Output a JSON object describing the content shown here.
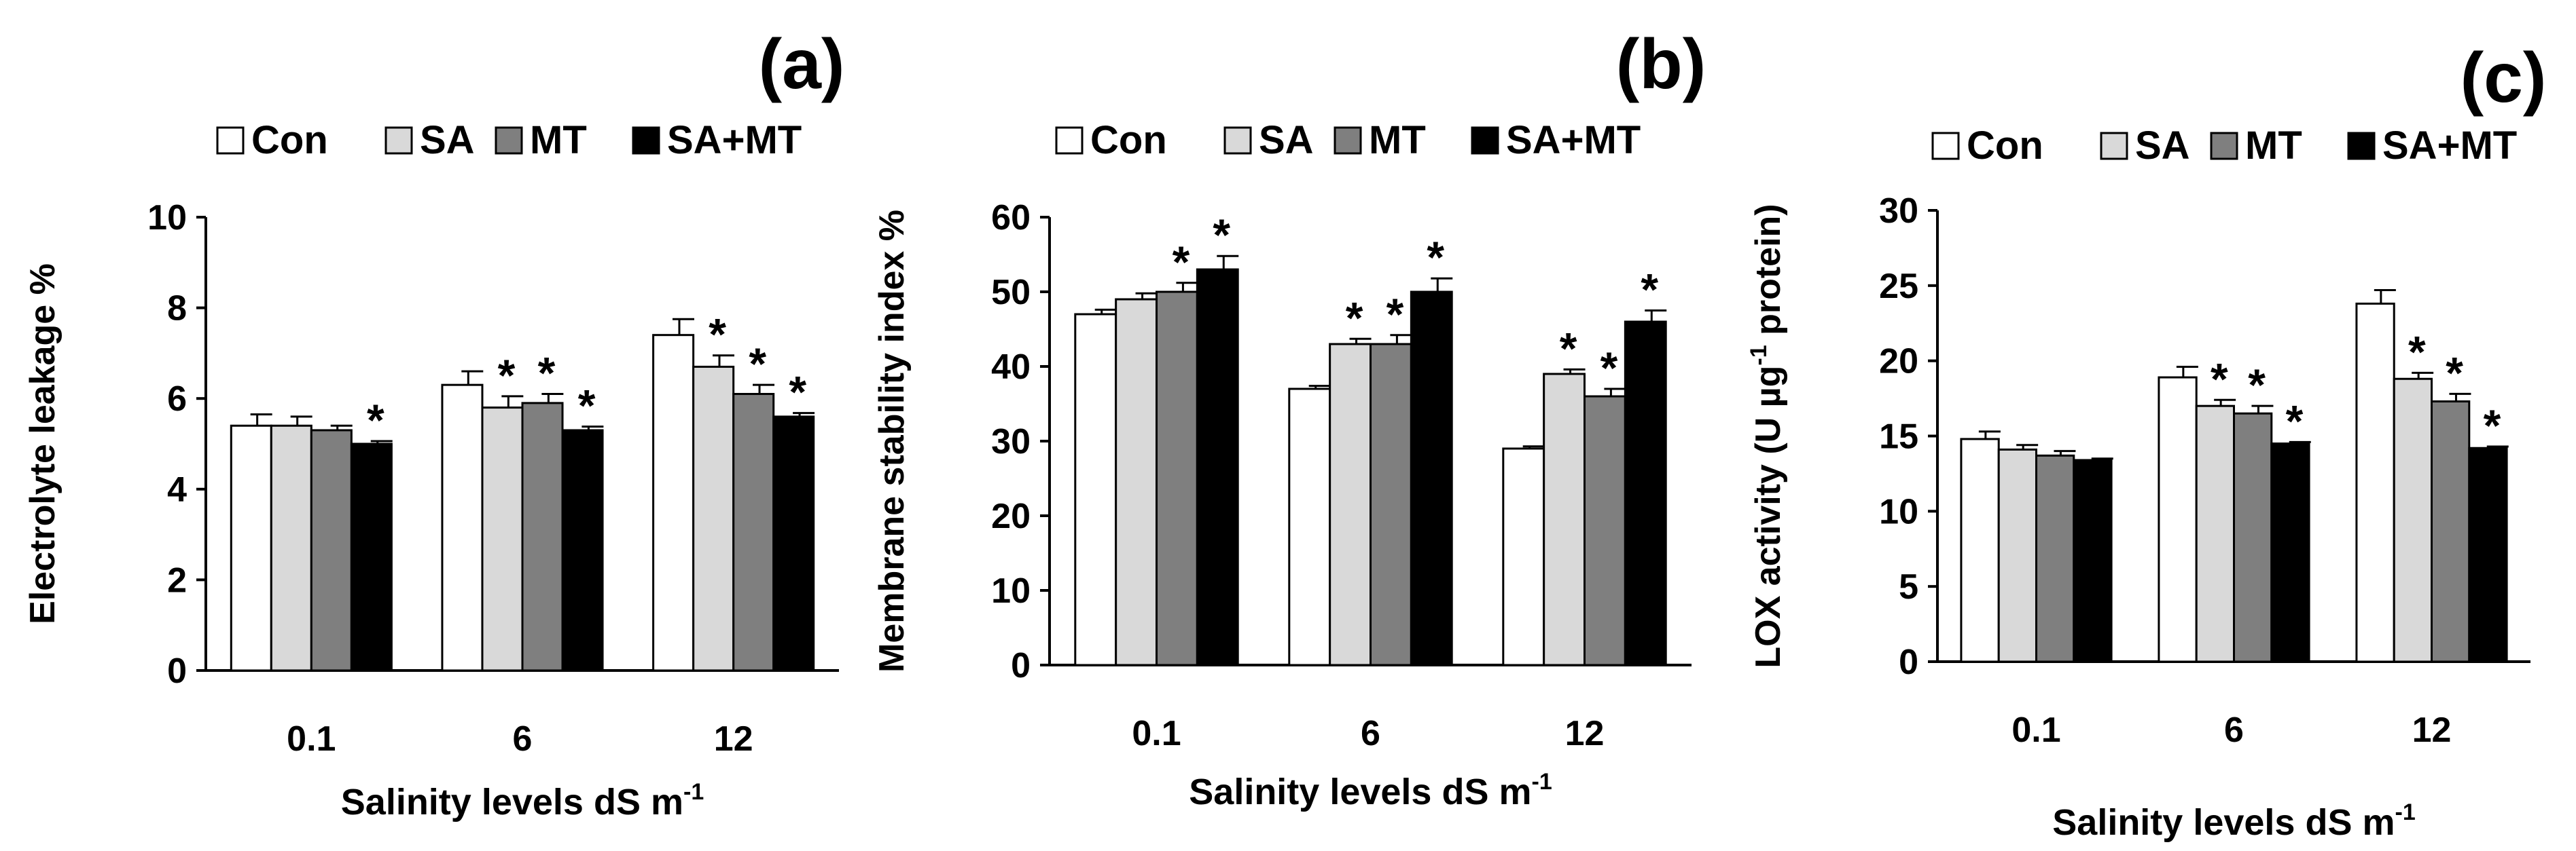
{
  "chart_data": [
    {
      "panel": "(a)",
      "type": "bar",
      "categories": [
        "0.1",
        "6",
        "12"
      ],
      "series": [
        {
          "name": "Con",
          "color": "#ffffff",
          "values": [
            5.4,
            6.3,
            7.4
          ],
          "errors": [
            0.25,
            0.3,
            0.35
          ],
          "significant": [
            false,
            false,
            false
          ]
        },
        {
          "name": "SA",
          "color": "#d9d9d9",
          "values": [
            5.4,
            5.8,
            6.7
          ],
          "errors": [
            0.2,
            0.25,
            0.25
          ],
          "significant": [
            false,
            true,
            true
          ]
        },
        {
          "name": "MT",
          "color": "#7f7f7f",
          "values": [
            5.3,
            5.9,
            6.1
          ],
          "errors": [
            0.1,
            0.2,
            0.2
          ],
          "significant": [
            false,
            true,
            true
          ]
        },
        {
          "name": "SA+MT",
          "color": "#000000",
          "values": [
            5.0,
            5.3,
            5.6
          ],
          "errors": [
            0.06,
            0.08,
            0.08
          ],
          "significant": [
            true,
            true,
            true
          ]
        }
      ],
      "significance_marker": "*",
      "ylabel": "Electrolyte leakage %",
      "xlabel": "Salinity levels dS m",
      "xlabel_sup": "-1",
      "ylim": [
        0,
        10
      ],
      "yticks": [
        "0",
        "2",
        "4",
        "6",
        "8",
        "10"
      ]
    },
    {
      "panel": "(b)",
      "type": "bar",
      "categories": [
        "0.1",
        "6",
        "12"
      ],
      "series": [
        {
          "name": "Con",
          "color": "#ffffff",
          "values": [
            47,
            37,
            29
          ],
          "errors": [
            0.6,
            0.4,
            0.3
          ],
          "significant": [
            false,
            false,
            false
          ]
        },
        {
          "name": "SA",
          "color": "#d9d9d9",
          "values": [
            49,
            43,
            39
          ],
          "errors": [
            0.8,
            0.7,
            0.6
          ],
          "significant": [
            false,
            true,
            true
          ]
        },
        {
          "name": "MT",
          "color": "#7f7f7f",
          "values": [
            50,
            43,
            36
          ],
          "errors": [
            1.2,
            1.2,
            1.0
          ],
          "significant": [
            true,
            true,
            true
          ]
        },
        {
          "name": "SA+MT",
          "color": "#000000",
          "values": [
            53,
            50,
            46
          ],
          "errors": [
            1.8,
            1.8,
            1.5
          ],
          "significant": [
            true,
            true,
            true
          ]
        }
      ],
      "significance_marker": "*",
      "ylabel": "Membrane stability index %",
      "xlabel": "Salinity levels dS m",
      "xlabel_sup": "-1",
      "ylim": [
        0,
        60
      ],
      "yticks": [
        "0",
        "10",
        "20",
        "30",
        "40",
        "50",
        "60"
      ]
    },
    {
      "panel": "(c)",
      "type": "bar",
      "categories": [
        "0.1",
        "6",
        "12"
      ],
      "series": [
        {
          "name": "Con",
          "color": "#ffffff",
          "values": [
            14.8,
            18.9,
            23.8
          ],
          "errors": [
            0.5,
            0.7,
            0.9
          ],
          "significant": [
            false,
            false,
            false
          ]
        },
        {
          "name": "SA",
          "color": "#d9d9d9",
          "values": [
            14.1,
            17.0,
            18.8
          ],
          "errors": [
            0.3,
            0.4,
            0.4
          ],
          "significant": [
            false,
            true,
            true
          ]
        },
        {
          "name": "MT",
          "color": "#7f7f7f",
          "values": [
            13.7,
            16.5,
            17.3
          ],
          "errors": [
            0.3,
            0.5,
            0.5
          ],
          "significant": [
            false,
            true,
            true
          ]
        },
        {
          "name": "SA+MT",
          "color": "#000000",
          "values": [
            13.4,
            14.5,
            14.2
          ],
          "errors": [
            0.1,
            0.1,
            0.1
          ],
          "significant": [
            false,
            true,
            true
          ]
        }
      ],
      "significance_marker": "*",
      "ylabel": "LOX activity (U µg",
      "ylabel_sup": "-1",
      "ylabel_suffix": " protein)",
      "xlabel": "Salinity levels dS m",
      "xlabel_sup": "-1",
      "ylim": [
        0,
        30
      ],
      "yticks": [
        "0",
        "5",
        "10",
        "15",
        "20",
        "25",
        "30"
      ]
    }
  ]
}
